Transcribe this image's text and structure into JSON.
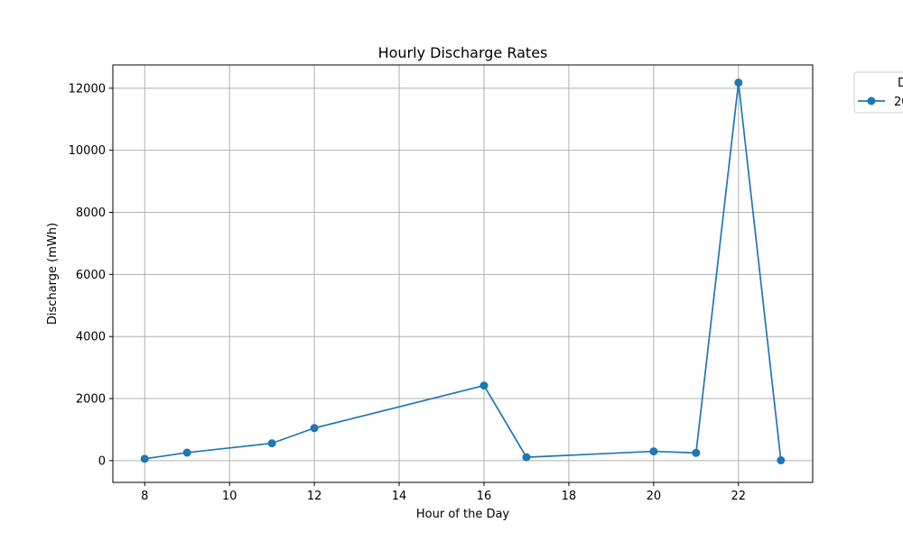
{
  "chart_data": {
    "type": "line",
    "title": "Hourly Discharge Rates",
    "xlabel": "Hour of the Day",
    "ylabel": "Discharge (mWh)",
    "xlim": [
      7.25,
      23.75
    ],
    "ylim": [
      -700,
      12750
    ],
    "x_ticks": [
      8,
      10,
      12,
      14,
      16,
      18,
      20,
      22
    ],
    "y_ticks": [
      0,
      2000,
      4000,
      6000,
      8000,
      10000,
      12000
    ],
    "grid": true,
    "legend": {
      "placement": "outside-top-right",
      "title_visible": "D",
      "entry_visible": "20"
    },
    "series": [
      {
        "color": "#1f77b4",
        "marker": "circle",
        "x": [
          8,
          9,
          11,
          12,
          16,
          17,
          20,
          21,
          22,
          23
        ],
        "y": [
          60,
          260,
          560,
          1050,
          2420,
          110,
          300,
          250,
          12180,
          10
        ]
      }
    ]
  }
}
